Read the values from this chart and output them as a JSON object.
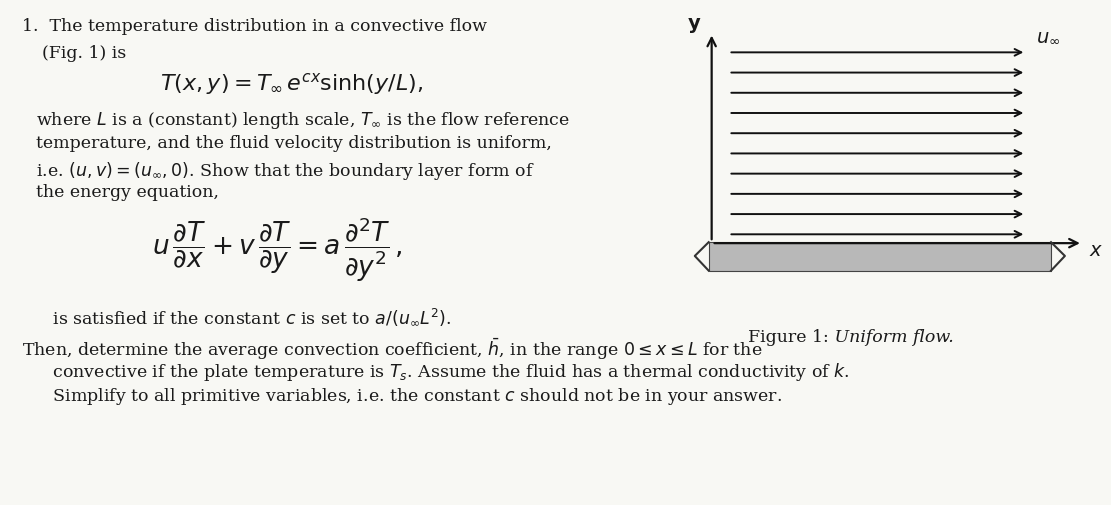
{
  "bg_color": "#f8f8f4",
  "text_color": "#1a1a1a",
  "fig_width": 11.11,
  "fig_height": 5.06,
  "line1": "1.  The temperature distribution in a convective flow",
  "line2": "(Fig. 1) is",
  "equation1": "$T(x, y) = T_{\\infty}\\, e^{cx} \\sinh(y/L),$",
  "line3_1": "where $L$ is a (constant) length scale, $T_{\\infty}$ is the flow reference",
  "line3_2": "temperature, and the fluid velocity distribution is uniform,",
  "line3_3": "i.e. $(u, v) = (u_{\\infty}, 0)$. Show that the boundary layer form of",
  "line3_4": "the energy equation,",
  "equation2": "$u\\,\\dfrac{\\partial T}{\\partial x} + v\\,\\dfrac{\\partial T}{\\partial y} = a\\,\\dfrac{\\partial^2 T}{\\partial y^2}\\,,$",
  "line4": "   is satisfied if the constant $c$ is set to $a/(u_{\\infty} L^2)$.",
  "line5_1": "Then, determine the average convection coefficient, $\\bar{h}$, in the range $0 \\leq x \\leq L$ for the",
  "line5_2": "   convective if the plate temperature is $T_s$. Assume the fluid has a thermal conductivity of $k$.",
  "line5_3": "   Simplify to all primitive variables, i.e. the constant $c$ should not be in your answer.",
  "fig_caption_bold": "Figure 1:",
  "fig_caption_italic": "   Uniform flow.",
  "u_inf_label": "$u_{\\infty}$",
  "y_label": "$\\mathbf{y}$",
  "x_label": "$x$"
}
